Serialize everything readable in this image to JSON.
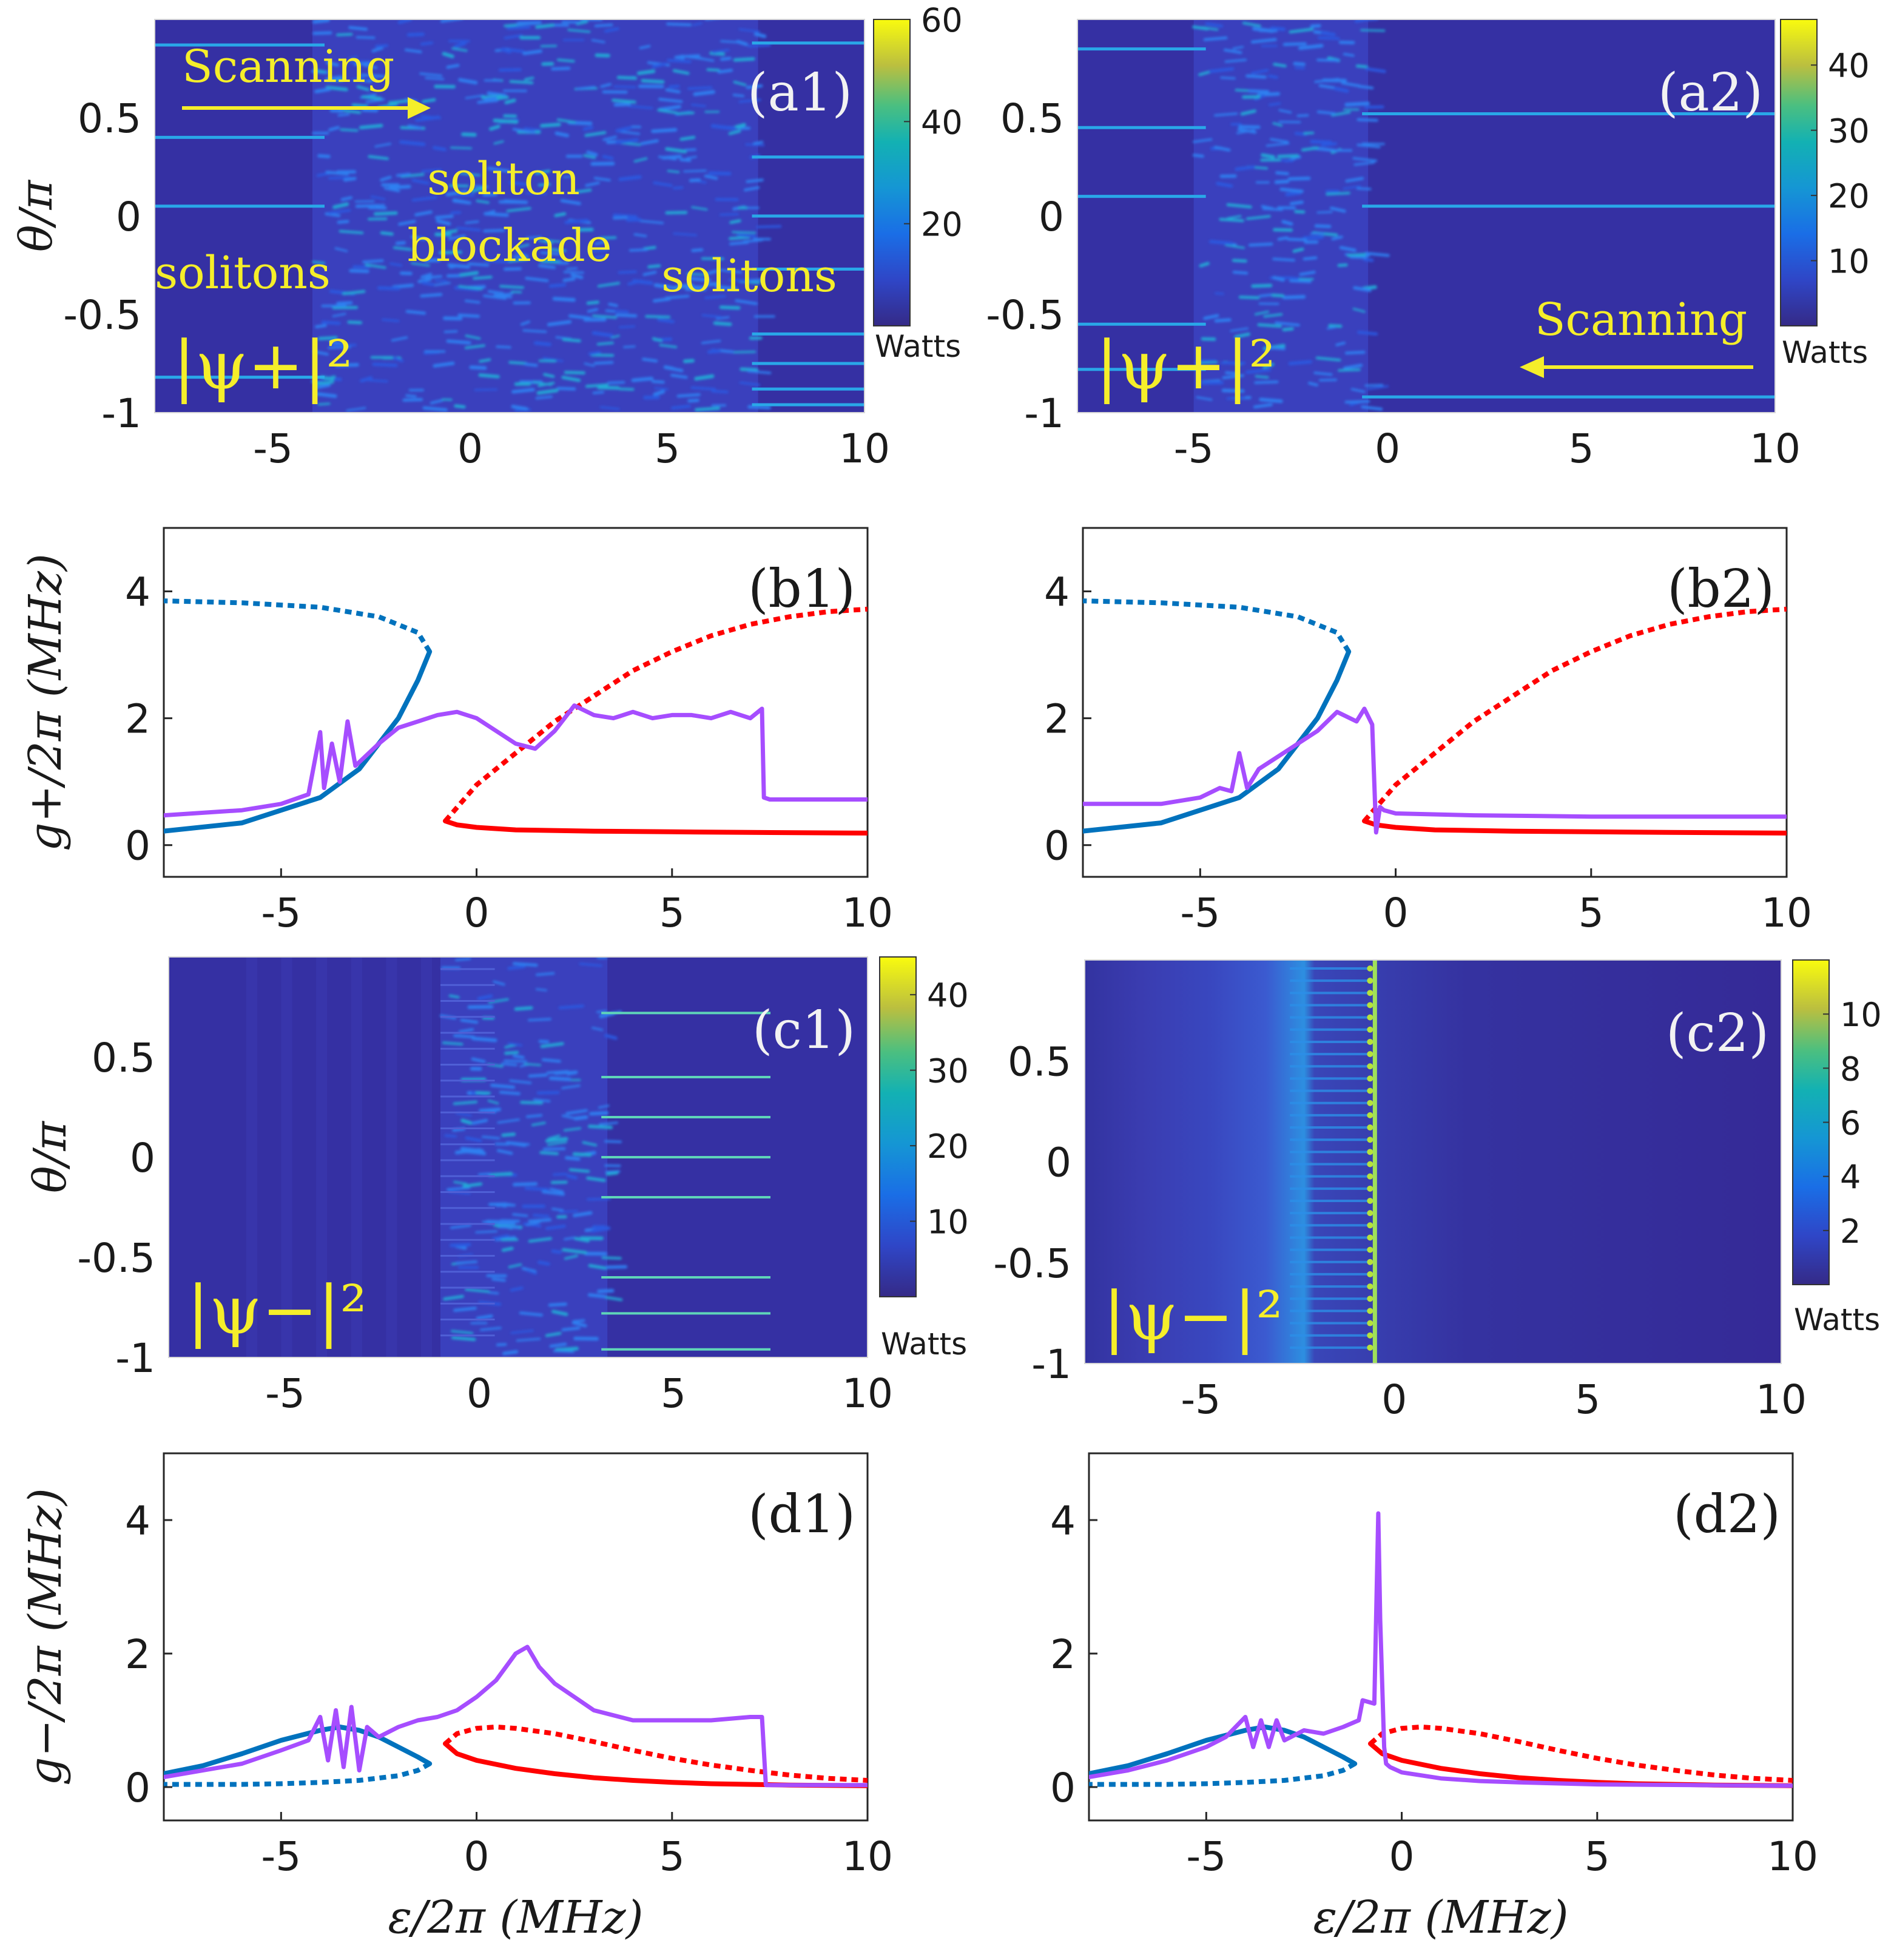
{
  "chart_data": [
    {
      "id": "a1",
      "type": "heatmap",
      "label": "(a1)",
      "field": "|ψ+|²",
      "ylabel": "θ/π",
      "xlim": [
        -8,
        10
      ],
      "ylim": [
        -1,
        1
      ],
      "clim": [
        0,
        60
      ],
      "cbar_ticks": [
        20,
        40,
        60
      ],
      "cbar_unit": "Watts",
      "xticks": [
        -5,
        0,
        5,
        10
      ],
      "yticks": [
        -1,
        -0.5,
        0,
        0.5
      ],
      "annotations": [
        "Scanning",
        "soliton",
        "blockade",
        "solitons",
        "solitons"
      ],
      "left_lines": [
        0.87,
        0.4,
        0.05,
        -0.82
      ],
      "right_lines": [
        0.88,
        0.3,
        0,
        -0.27,
        -0.6,
        -0.75,
        -0.88,
        -0.96
      ],
      "chaos": [
        -4,
        7.3
      ]
    },
    {
      "id": "a2",
      "type": "heatmap",
      "label": "(a2)",
      "field": "|ψ+|²",
      "xlim": [
        -8,
        10
      ],
      "ylim": [
        -1,
        1
      ],
      "clim": [
        0,
        47
      ],
      "cbar_ticks": [
        10,
        20,
        30,
        40
      ],
      "cbar_unit": "Watts",
      "xticks": [
        -5,
        0,
        5,
        10
      ],
      "yticks": [
        -1,
        -0.5,
        0,
        0.5
      ],
      "annotations": [
        "Scanning"
      ],
      "left_lines": [
        0.85,
        0.45,
        0.1,
        -0.55,
        -0.78
      ],
      "right_lines": [
        0.52,
        0.05,
        -0.92
      ],
      "chaos": [
        -5,
        -0.5
      ]
    },
    {
      "id": "b1",
      "type": "line",
      "label": "(b1)",
      "ylabel": "g+/2π (MHz)",
      "xlim": [
        -8,
        10
      ],
      "ylim": [
        -0.5,
        5
      ],
      "xticks": [
        -5,
        0,
        5,
        10
      ],
      "yticks": [
        0,
        2,
        4
      ],
      "series": [
        {
          "name": "blue-stable",
          "style": "solid",
          "color": "#0072bd",
          "x": [
            -8,
            -6,
            -4,
            -3,
            -2,
            -1.5,
            -1.2
          ],
          "y": [
            0.22,
            0.35,
            0.75,
            1.2,
            2.0,
            2.6,
            3.05
          ]
        },
        {
          "name": "blue-unstable",
          "style": "dotted",
          "color": "#0072bd",
          "x": [
            -1.2,
            -1.5,
            -2.5,
            -4,
            -6,
            -8
          ],
          "y": [
            3.05,
            3.35,
            3.6,
            3.75,
            3.82,
            3.85
          ]
        },
        {
          "name": "red-stable",
          "style": "solid",
          "color": "#ff0000",
          "x": [
            -0.8,
            -0.5,
            0,
            1,
            3,
            5,
            7,
            10
          ],
          "y": [
            0.38,
            0.32,
            0.28,
            0.24,
            0.22,
            0.21,
            0.2,
            0.19
          ]
        },
        {
          "name": "red-unstable",
          "style": "dotted",
          "color": "#ff0000",
          "x": [
            -0.8,
            0,
            1,
            2,
            3,
            4,
            5,
            6,
            7,
            8,
            9,
            10
          ],
          "y": [
            0.38,
            0.95,
            1.45,
            1.95,
            2.35,
            2.75,
            3.05,
            3.3,
            3.48,
            3.6,
            3.68,
            3.72
          ]
        },
        {
          "name": "simulation",
          "style": "solid",
          "color": "#a64dff",
          "x": [
            -8,
            -6,
            -5,
            -4.3,
            -4,
            -3.9,
            -3.7,
            -3.5,
            -3.3,
            -3.1,
            -2.5,
            -2,
            -1.5,
            -1,
            -0.5,
            0,
            0.5,
            1,
            1.5,
            2,
            2.5,
            3,
            3.5,
            4,
            4.5,
            5,
            5.5,
            6,
            6.5,
            7,
            7.3,
            7.35,
            7.5,
            10
          ],
          "y": [
            0.47,
            0.55,
            0.65,
            0.8,
            1.78,
            0.9,
            1.6,
            1.0,
            1.95,
            1.25,
            1.6,
            1.85,
            1.95,
            2.05,
            2.1,
            2.0,
            1.8,
            1.6,
            1.52,
            1.8,
            2.2,
            2.05,
            2.0,
            2.1,
            2.0,
            2.05,
            2.05,
            2.0,
            2.1,
            2.0,
            2.15,
            0.75,
            0.72,
            0.72
          ]
        }
      ]
    },
    {
      "id": "b2",
      "type": "line",
      "label": "(b2)",
      "xlim": [
        -8,
        10
      ],
      "ylim": [
        -0.5,
        5
      ],
      "xticks": [
        -5,
        0,
        5,
        10
      ],
      "yticks": [
        0,
        2,
        4
      ],
      "series": [
        {
          "name": "blue-stable",
          "style": "solid",
          "color": "#0072bd",
          "x": [
            -8,
            -6,
            -4,
            -3,
            -2,
            -1.5,
            -1.2
          ],
          "y": [
            0.22,
            0.35,
            0.75,
            1.2,
            2.0,
            2.6,
            3.05
          ]
        },
        {
          "name": "blue-unstable",
          "style": "dotted",
          "color": "#0072bd",
          "x": [
            -1.2,
            -1.5,
            -2.5,
            -4,
            -6,
            -8
          ],
          "y": [
            3.05,
            3.35,
            3.6,
            3.75,
            3.82,
            3.85
          ]
        },
        {
          "name": "red-stable",
          "style": "solid",
          "color": "#ff0000",
          "x": [
            -0.8,
            -0.5,
            0,
            1,
            3,
            5,
            7,
            10
          ],
          "y": [
            0.38,
            0.32,
            0.28,
            0.24,
            0.22,
            0.21,
            0.2,
            0.19
          ]
        },
        {
          "name": "red-unstable",
          "style": "dotted",
          "color": "#ff0000",
          "x": [
            -0.8,
            0,
            1,
            2,
            3,
            4,
            5,
            6,
            7,
            8,
            9,
            10
          ],
          "y": [
            0.38,
            0.95,
            1.45,
            1.95,
            2.35,
            2.75,
            3.05,
            3.3,
            3.48,
            3.6,
            3.68,
            3.72
          ]
        },
        {
          "name": "simulation",
          "style": "solid",
          "color": "#a64dff",
          "x": [
            -8,
            -7,
            -6,
            -5,
            -4.5,
            -4.2,
            -4,
            -3.8,
            -3.5,
            -3,
            -2.5,
            -2,
            -1.5,
            -1,
            -0.8,
            -0.6,
            -0.5,
            -0.4,
            -0.3,
            0,
            2,
            5,
            10
          ],
          "y": [
            0.65,
            0.65,
            0.65,
            0.75,
            0.9,
            0.85,
            1.45,
            0.9,
            1.2,
            1.4,
            1.6,
            1.8,
            2.1,
            1.95,
            2.15,
            1.9,
            0.2,
            0.6,
            0.55,
            0.5,
            0.47,
            0.45,
            0.45
          ]
        }
      ]
    },
    {
      "id": "c1",
      "type": "heatmap",
      "label": "(c1)",
      "field": "|ψ−|²",
      "ylabel": "θ/π",
      "xlim": [
        -8,
        10
      ],
      "ylim": [
        -1,
        1
      ],
      "clim": [
        0,
        45
      ],
      "cbar_ticks": [
        10,
        20,
        30,
        40
      ],
      "cbar_unit": "Watts",
      "xticks": [
        -5,
        0,
        5,
        10
      ],
      "yticks": [
        -1,
        -0.5,
        0,
        0.5
      ],
      "right_lines": [
        0.72,
        0.4,
        0.2,
        0,
        -0.2,
        -0.6,
        -0.78,
        -0.96
      ],
      "chaos": [
        -1,
        3.3
      ]
    },
    {
      "id": "c2",
      "type": "heatmap",
      "label": "(c2)",
      "field": "|ψ−|²",
      "xlim": [
        -8,
        10
      ],
      "ylim": [
        -1,
        1
      ],
      "clim": [
        0,
        12
      ],
      "cbar_ticks": [
        2,
        4,
        6,
        8,
        10
      ],
      "cbar_unit": "Watts",
      "xticks": [
        -5,
        0,
        5,
        10
      ],
      "yticks": [
        -1,
        -0.5,
        0,
        0.5
      ],
      "bright_edge": -0.5
    },
    {
      "id": "d1",
      "type": "line",
      "label": "(d1)",
      "ylabel": "g−/2π (MHz)",
      "xlabel": "ε/2π (MHz)",
      "xlim": [
        -8,
        10
      ],
      "ylim": [
        -0.5,
        5
      ],
      "xticks": [
        -5,
        0,
        5,
        10
      ],
      "yticks": [
        0,
        2,
        4
      ],
      "series": [
        {
          "name": "blue-stable",
          "style": "solid",
          "color": "#0072bd",
          "x": [
            -8,
            -7,
            -6,
            -5,
            -4,
            -3.5,
            -3,
            -2.5,
            -2,
            -1.5,
            -1.2
          ],
          "y": [
            0.2,
            0.32,
            0.5,
            0.7,
            0.85,
            0.9,
            0.85,
            0.75,
            0.6,
            0.45,
            0.35
          ]
        },
        {
          "name": "blue-unstable",
          "style": "dotted",
          "color": "#0072bd",
          "x": [
            -1.2,
            -1.5,
            -2,
            -3,
            -4,
            -5,
            -6,
            -7,
            -8
          ],
          "y": [
            0.35,
            0.25,
            0.17,
            0.1,
            0.07,
            0.05,
            0.04,
            0.04,
            0.04
          ]
        },
        {
          "name": "red-stable",
          "style": "solid",
          "color": "#ff0000",
          "x": [
            -0.8,
            -0.5,
            0,
            1,
            2,
            3,
            4,
            5,
            6,
            7,
            8,
            10
          ],
          "y": [
            0.65,
            0.5,
            0.4,
            0.28,
            0.2,
            0.14,
            0.1,
            0.07,
            0.05,
            0.04,
            0.03,
            0.02
          ]
        },
        {
          "name": "red-unstable",
          "style": "dotted",
          "color": "#ff0000",
          "x": [
            -0.8,
            -0.5,
            0,
            0.5,
            1,
            2,
            3,
            4,
            5,
            6,
            7,
            8,
            9,
            10
          ],
          "y": [
            0.65,
            0.8,
            0.88,
            0.9,
            0.88,
            0.8,
            0.68,
            0.55,
            0.43,
            0.33,
            0.25,
            0.18,
            0.13,
            0.1
          ]
        },
        {
          "name": "simulation",
          "style": "solid",
          "color": "#a64dff",
          "x": [
            -8,
            -6,
            -5,
            -4.3,
            -4,
            -3.8,
            -3.6,
            -3.4,
            -3.2,
            -3,
            -2.8,
            -2.5,
            -2,
            -1.5,
            -1,
            -0.5,
            0,
            0.5,
            1,
            1.3,
            1.6,
            2,
            2.5,
            3,
            4,
            5,
            6,
            7,
            7.3,
            7.4,
            8,
            10
          ],
          "y": [
            0.15,
            0.35,
            0.55,
            0.7,
            1.05,
            0.4,
            1.15,
            0.3,
            1.2,
            0.25,
            0.9,
            0.75,
            0.9,
            1.0,
            1.05,
            1.15,
            1.35,
            1.6,
            2.0,
            2.1,
            1.8,
            1.55,
            1.35,
            1.15,
            1.0,
            1.0,
            1.0,
            1.05,
            1.05,
            0.03,
            0.03,
            0.03
          ]
        }
      ]
    },
    {
      "id": "d2",
      "type": "line",
      "label": "(d2)",
      "xlabel": "ε/2π (MHz)",
      "xlim": [
        -8,
        10
      ],
      "ylim": [
        -0.5,
        5
      ],
      "xticks": [
        -5,
        0,
        5,
        10
      ],
      "yticks": [
        0,
        2,
        4
      ],
      "series": [
        {
          "name": "blue-stable",
          "style": "solid",
          "color": "#0072bd",
          "x": [
            -8,
            -7,
            -6,
            -5,
            -4,
            -3.5,
            -3,
            -2.5,
            -2,
            -1.5,
            -1.2
          ],
          "y": [
            0.2,
            0.32,
            0.5,
            0.7,
            0.85,
            0.9,
            0.85,
            0.75,
            0.6,
            0.45,
            0.35
          ]
        },
        {
          "name": "blue-unstable",
          "style": "dotted",
          "color": "#0072bd",
          "x": [
            -1.2,
            -1.5,
            -2,
            -3,
            -4,
            -5,
            -6,
            -7,
            -8
          ],
          "y": [
            0.35,
            0.25,
            0.17,
            0.1,
            0.07,
            0.05,
            0.04,
            0.04,
            0.04
          ]
        },
        {
          "name": "red-stable",
          "style": "solid",
          "color": "#ff0000",
          "x": [
            -0.8,
            -0.5,
            0,
            1,
            2,
            3,
            4,
            5,
            6,
            7,
            8,
            10
          ],
          "y": [
            0.65,
            0.5,
            0.4,
            0.28,
            0.2,
            0.14,
            0.1,
            0.07,
            0.05,
            0.04,
            0.03,
            0.02
          ]
        },
        {
          "name": "red-unstable",
          "style": "dotted",
          "color": "#ff0000",
          "x": [
            -0.8,
            -0.5,
            0,
            0.5,
            1,
            2,
            3,
            4,
            5,
            6,
            7,
            8,
            9,
            10
          ],
          "y": [
            0.65,
            0.8,
            0.88,
            0.9,
            0.88,
            0.8,
            0.68,
            0.55,
            0.43,
            0.33,
            0.25,
            0.18,
            0.13,
            0.1
          ]
        },
        {
          "name": "simulation",
          "style": "solid",
          "color": "#a64dff",
          "x": [
            -8,
            -7,
            -6,
            -5,
            -4.5,
            -4,
            -3.8,
            -3.6,
            -3.4,
            -3.2,
            -3,
            -2.5,
            -2,
            -1.5,
            -1.1,
            -1,
            -0.7,
            -0.6,
            -0.55,
            -0.45,
            -0.4,
            -0.3,
            0,
            1,
            2,
            3,
            5,
            10
          ],
          "y": [
            0.15,
            0.25,
            0.4,
            0.6,
            0.75,
            1.05,
            0.6,
            1.0,
            0.6,
            1.0,
            0.7,
            0.85,
            0.8,
            0.9,
            1.0,
            1.3,
            1.25,
            4.1,
            2.5,
            0.6,
            0.35,
            0.3,
            0.22,
            0.13,
            0.09,
            0.07,
            0.04,
            0.02
          ]
        }
      ]
    }
  ]
}
